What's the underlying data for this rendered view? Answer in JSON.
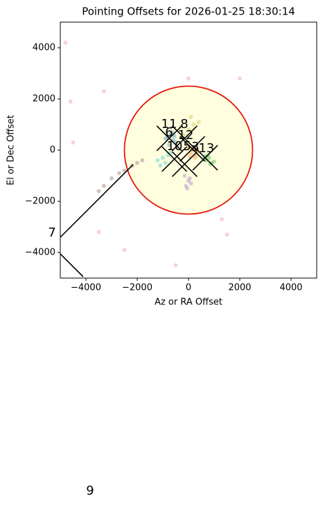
{
  "chart_data": {
    "type": "scatter",
    "title": "Pointing Offsets for 2026-01-25 18:30:14",
    "x_label": "Az or RA Offset",
    "y_label": "El or Dec Offset",
    "xlim": [
      -5000,
      5000
    ],
    "ylim": [
      -5000,
      5000
    ],
    "xticks": [
      {
        "value": -4000,
        "label": "−4000"
      },
      {
        "value": -2000,
        "label": "−2000"
      },
      0,
      2000,
      4000
    ],
    "yticks": [
      {
        "value": -4000,
        "label": "−4000"
      },
      {
        "value": -2000,
        "label": "−2000"
      },
      0,
      2000,
      4000
    ],
    "circle": {
      "x": 0,
      "y": 0,
      "r": 2500,
      "edgecolor": "#e8160c",
      "facecolor": "#ffffe0"
    },
    "series": [
      {
        "color": "#1f77b4",
        "x": [
          -700,
          -600,
          -800,
          -500,
          -650,
          -750,
          -550,
          -900
        ],
        "y": [
          600,
          400,
          500,
          300,
          700,
          200,
          550,
          450
        ]
      },
      {
        "color": "#ff7f0e",
        "x": [
          100,
          200,
          300,
          0,
          250,
          150,
          350,
          50
        ],
        "y": [
          -100,
          0,
          -200,
          100,
          -300,
          50,
          -50,
          -250
        ]
      },
      {
        "color": "#2ca02c",
        "x": [
          700,
          800,
          900,
          600,
          1000,
          750,
          850,
          650
        ],
        "y": [
          -400,
          -300,
          -500,
          -350,
          -450,
          -200,
          -550,
          -250
        ]
      },
      {
        "color": "#9467bd",
        "x": [
          0,
          -100,
          100,
          -50,
          50,
          -150
        ],
        "y": [
          -1200,
          -1400,
          -1300,
          -1500,
          -1100,
          -1000
        ]
      },
      {
        "color": "#8c564b",
        "x": [
          -2500,
          -2700,
          -3000,
          -3300,
          -2200,
          -2000,
          -1800,
          -3500
        ],
        "y": [
          -800,
          -900,
          -1100,
          -1400,
          -600,
          -500,
          -400,
          -1600
        ]
      },
      {
        "color": "#e377c2",
        "x": [
          -4800,
          -4600,
          -3300,
          -2500,
          0,
          2000,
          -3500,
          -500,
          1300,
          1500,
          -4500
        ],
        "y": [
          4200,
          1900,
          2300,
          -3900,
          2800,
          2800,
          -3200,
          -4500,
          -2700,
          -3300,
          300
        ]
      },
      {
        "color": "#bcbd22",
        "x": [
          0,
          200,
          -200,
          400,
          100,
          -300
        ],
        "y": [
          800,
          1000,
          600,
          1100,
          1300,
          900
        ]
      },
      {
        "color": "#17becf",
        "x": [
          -1000,
          -900,
          -1200,
          -800,
          -1100,
          -700
        ],
        "y": [
          -300,
          -500,
          -400,
          -200,
          -600,
          -100
        ]
      }
    ],
    "crosses": {
      "x": [
        -750,
        -150,
        -550,
        150,
        650,
        -150
      ],
      "y": [
        460,
        460,
        -350,
        50,
        -300,
        -550
      ]
    },
    "segments": [
      {
        "x": [
          -5000,
          -2162
        ],
        "y": [
          -3405,
          -568
        ]
      },
      {
        "x": [
          -5000,
          -4108
        ],
        "y": [
          -4054,
          -4946
        ]
      }
    ],
    "annotations": [
      {
        "text": "11",
        "x": -757,
        "y": 1000
      },
      {
        "text": "8",
        "x": -162,
        "y": 1000
      },
      {
        "text": "6",
        "x": -757,
        "y": 676
      },
      {
        "text": "12",
        "x": -108,
        "y": 568
      },
      {
        "text": "10",
        "x": -540,
        "y": 135
      },
      {
        "text": "5",
        "x": -50,
        "y": 135
      },
      {
        "text": "3",
        "x": 270,
        "y": 108
      },
      {
        "text": "13",
        "x": 700,
        "y": 54
      },
      {
        "text": "7",
        "x": -5324,
        "y": -3243
      },
      {
        "text": "9",
        "x": -3838,
        "y": -13324
      }
    ]
  }
}
